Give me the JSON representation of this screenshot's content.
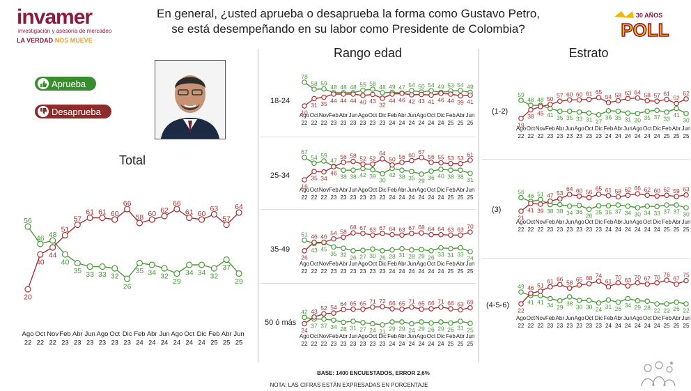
{
  "header": {
    "logo_name": "invamer",
    "logo_subtitle": "investigación y asesoría de mercadeo",
    "logo_tagline_a": "LA VERDAD",
    "logo_tagline_b": "NOS MUEVE",
    "title_line1": "En general, ¿usted aprueba o desaprueba la forma como Gustavo Petro,",
    "title_line2": "se está desempeñando en su labor como Presidente de Colombia?",
    "badge_top": "30 AÑOS",
    "badge_main": "POLL"
  },
  "legend": {
    "approve_label": "Aprueba",
    "disapprove_label": "Desaprueba",
    "approve_color": "#3a8d2f",
    "disapprove_color": "#a83232"
  },
  "sections": {
    "total_title": "Total",
    "age_title": "Rango edad",
    "strata_title": "Estrato"
  },
  "footer": {
    "base": "BASE: 1400 ENCUESTADOS, ERROR 2,6%",
    "note": "NOTA: LAS CIFRAS ESTÁN EXPRESADAS EN PORCENTAJE"
  },
  "chart_data": [
    {
      "id": "total",
      "type": "line",
      "title": "Total",
      "months": [
        "Ago",
        "Oct",
        "Nov",
        "Feb",
        "Abr",
        "Jun",
        "Ago",
        "Oct",
        "Dic",
        "Feb",
        "Abr",
        "Jun",
        "Ago",
        "Oct",
        "Dic",
        "Feb",
        "Abr",
        "Jun"
      ],
      "years": [
        "22",
        "22",
        "22",
        "23",
        "23",
        "23",
        "23",
        "23",
        "23",
        "24",
        "24",
        "24",
        "24",
        "24",
        "24",
        "25",
        "25",
        "25"
      ],
      "series": [
        {
          "name": "Aprueba",
          "color": "#4a9a3a",
          "values": [
            56,
            46,
            48,
            40,
            35,
            33,
            33,
            32,
            26,
            35,
            34,
            32,
            29,
            34,
            34,
            32,
            37,
            29
          ]
        },
        {
          "name": "Desaprueba",
          "color": "#a83232",
          "values": [
            20,
            40,
            44,
            51,
            57,
            61,
            61,
            60,
            66,
            58,
            60,
            62,
            66,
            61,
            60,
            63,
            57,
            64
          ]
        }
      ]
    },
    {
      "id": "age_18_24",
      "type": "line",
      "row_label": "18-24",
      "months": [
        "Ago",
        "Oct",
        "Nov",
        "Feb",
        "Abr",
        "Jun",
        "Ago",
        "Oct",
        "Dic",
        "Feb",
        "Abr",
        "Jun",
        "Ago",
        "Oct",
        "Dic",
        "Feb",
        "Abr",
        "Jun"
      ],
      "years": [
        "22",
        "22",
        "22",
        "23",
        "23",
        "23",
        "23",
        "23",
        "23",
        "24",
        "24",
        "24",
        "24",
        "24",
        "24",
        "25",
        "25",
        "25"
      ],
      "series": [
        {
          "name": "Aprueba",
          "color": "#4a9a3a",
          "values": [
            78,
            58,
            59,
            48,
            48,
            48,
            55,
            58,
            48,
            49,
            47,
            54,
            50,
            54,
            49,
            53,
            54,
            49
          ]
        },
        {
          "name": "Desaprueba",
          "color": "#a83232",
          "values": [
            10,
            31,
            35,
            44,
            44,
            44,
            40,
            43,
            32,
            44,
            46,
            42,
            43,
            41,
            46,
            44,
            39,
            41
          ]
        }
      ]
    },
    {
      "id": "age_25_34",
      "type": "line",
      "row_label": "25-34",
      "months": [
        "Ago",
        "Oct",
        "Nov",
        "Feb",
        "Abr",
        "Jun",
        "Ago",
        "Oct",
        "Dic",
        "Feb",
        "Abr",
        "Jun",
        "Ago",
        "Oct",
        "Dic",
        "Feb",
        "Abr",
        "Jun"
      ],
      "years": [
        "22",
        "22",
        "22",
        "23",
        "23",
        "23",
        "23",
        "23",
        "23",
        "24",
        "24",
        "24",
        "24",
        "24",
        "24",
        "25",
        "25",
        "25"
      ],
      "series": [
        {
          "name": "Aprueba",
          "color": "#4a9a3a",
          "values": [
            67,
            54,
            59,
            47,
            38,
            38,
            42,
            39,
            30,
            42,
            38,
            35,
            29,
            36,
            40,
            38,
            38,
            31
          ]
        },
        {
          "name": "Desaprueba",
          "color": "#a83232",
          "values": [
            16,
            35,
            34,
            46,
            56,
            58,
            52,
            52,
            64,
            50,
            56,
            60,
            67,
            56,
            55,
            53,
            53,
            61
          ]
        }
      ]
    },
    {
      "id": "age_35_49",
      "type": "line",
      "row_label": "35-49",
      "months": [
        "Ago",
        "Oct",
        "Nov",
        "Feb",
        "Abr",
        "Jun",
        "Ago",
        "Oct",
        "Dic",
        "Feb",
        "Abr",
        "Jun",
        "Ago",
        "Oct",
        "Dic",
        "Feb",
        "Abr",
        "Jun"
      ],
      "years": [
        "22",
        "22",
        "22",
        "23",
        "23",
        "23",
        "23",
        "23",
        "23",
        "24",
        "24",
        "24",
        "24",
        "24",
        "24",
        "25",
        "25",
        "25"
      ],
      "series": [
        {
          "name": "Aprueba",
          "color": "#4a9a3a",
          "values": [
            51,
            43,
            45,
            35,
            32,
            26,
            27,
            30,
            26,
            28,
            31,
            28,
            29,
            26,
            33,
            31,
            33,
            24
          ]
        },
        {
          "name": "Desaprueba",
          "color": "#a83232",
          "values": [
            26,
            46,
            46,
            54,
            58,
            68,
            67,
            63,
            67,
            64,
            63,
            67,
            68,
            64,
            64,
            63,
            63,
            70
          ]
        }
      ]
    },
    {
      "id": "age_50_plus",
      "type": "line",
      "row_label": "50 ó más",
      "months": [
        "Ago",
        "Oct",
        "Nov",
        "Feb",
        "Abr",
        "Jun",
        "Ago",
        "Oct",
        "Dic",
        "Feb",
        "Abr",
        "Jun",
        "Ago",
        "Oct",
        "Dic",
        "Feb",
        "Abr",
        "Jun"
      ],
      "years": [
        "22",
        "22",
        "22",
        "23",
        "23",
        "23",
        "23",
        "23",
        "23",
        "24",
        "24",
        "24",
        "24",
        "24",
        "24",
        "25",
        "25",
        "25"
      ],
      "series": [
        {
          "name": "Aprueba",
          "color": "#4a9a3a",
          "values": [
            42,
            37,
            37,
            34,
            28,
            31,
            27,
            24,
            21,
            29,
            29,
            24,
            29,
            26,
            29,
            26,
            31,
            25
          ]
        },
        {
          "name": "Desaprueba",
          "color": "#a83232",
          "values": [
            24,
            43,
            52,
            54,
            64,
            65,
            65,
            71,
            72,
            66,
            65,
            71,
            65,
            66,
            71,
            66,
            63,
            69
          ]
        }
      ]
    },
    {
      "id": "strata_1_2",
      "type": "line",
      "row_label": "(1-2)",
      "months": [
        "Ago",
        "Oct",
        "Nov",
        "Feb",
        "Abr",
        "Jun",
        "Ago",
        "Oct",
        "Dic",
        "Feb",
        "Abr",
        "Jun",
        "Ago",
        "Oct",
        "Dic",
        "Feb",
        "Abr",
        "Jun"
      ],
      "years": [
        "22",
        "22",
        "22",
        "23",
        "23",
        "23",
        "23",
        "23",
        "23",
        "24",
        "24",
        "24",
        "24",
        "24",
        "24",
        "25",
        "25",
        "25"
      ],
      "series": [
        {
          "name": "Aprueba",
          "color": "#4a9a3a",
          "values": [
            59,
            48,
            48,
            41,
            35,
            35,
            33,
            31,
            27,
            36,
            35,
            31,
            30,
            35,
            37,
            33,
            41,
            30
          ]
        },
        {
          "name": "Desaprueba",
          "color": "#a83232",
          "values": [
            19,
            38,
            45,
            50,
            57,
            60,
            60,
            61,
            65,
            54,
            58,
            63,
            64,
            58,
            57,
            61,
            52,
            62
          ]
        }
      ]
    },
    {
      "id": "strata_3",
      "type": "line",
      "row_label": "(3)",
      "months": [
        "Ago",
        "Oct",
        "Nov",
        "Feb",
        "Abr",
        "Jun",
        "Ago",
        "Oct",
        "Dic",
        "Feb",
        "Abr",
        "Jun",
        "Ago",
        "Oct",
        "Dic",
        "Feb",
        "Abr",
        "Jun"
      ],
      "years": [
        "22",
        "22",
        "22",
        "23",
        "23",
        "23",
        "23",
        "23",
        "23",
        "24",
        "24",
        "24",
        "24",
        "24",
        "24",
        "25",
        "25",
        "25"
      ],
      "series": [
        {
          "name": "Aprueba",
          "color": "#4a9a3a",
          "values": [
            56,
            46,
            51,
            38,
            38,
            34,
            36,
            26,
            35,
            35,
            37,
            34,
            30,
            34,
            33,
            37,
            37,
            30
          ]
        },
        {
          "name": "Desaprueba",
          "color": "#a83232",
          "values": [
            21,
            41,
            39,
            47,
            53,
            64,
            60,
            56,
            65,
            61,
            58,
            62,
            66,
            62,
            60,
            62,
            59,
            63
          ]
        }
      ]
    },
    {
      "id": "strata_4_5_6",
      "type": "line",
      "row_label": "(4-5-6)",
      "months": [
        "Ago",
        "Oct",
        "Nov",
        "Feb",
        "Abr",
        "Jun",
        "Ago",
        "Oct",
        "Dic",
        "Feb",
        "Abr",
        "Jun",
        "Ago",
        "Oct",
        "Dic",
        "Feb",
        "Abr",
        "Jun"
      ],
      "years": [
        "22",
        "22",
        "22",
        "23",
        "23",
        "23",
        "23",
        "23",
        "23",
        "24",
        "24",
        "24",
        "24",
        "24",
        "24",
        "25",
        "25",
        "25"
      ],
      "series": [
        {
          "name": "Aprueba",
          "color": "#4a9a3a",
          "values": [
            49,
            41,
            41,
            34,
            29,
            38,
            30,
            30,
            24,
            31,
            26,
            34,
            29,
            28,
            22,
            22,
            26,
            22
          ]
        },
        {
          "name": "Desaprueba",
          "color": "#a83232",
          "values": [
            22,
            46,
            51,
            61,
            66,
            58,
            65,
            68,
            74,
            61,
            70,
            63,
            70,
            67,
            70,
            76,
            67,
            75
          ]
        }
      ]
    }
  ]
}
